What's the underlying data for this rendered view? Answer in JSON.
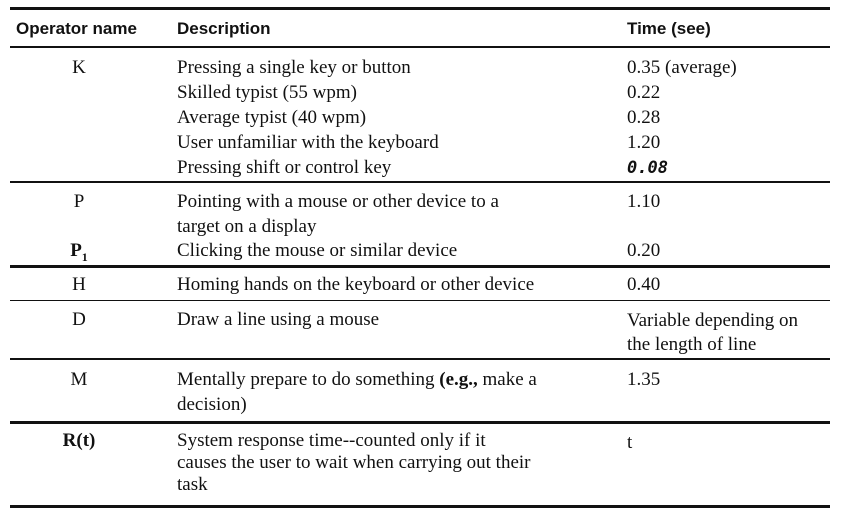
{
  "header": {
    "operator": "Operator name",
    "description": "Description",
    "time": "Time (see)"
  },
  "rows": [
    {
      "op": "K",
      "lines": [
        {
          "desc": "Pressing a single key or button",
          "time": "0.35 (average)"
        },
        {
          "desc": "Skilled typist (55 wpm)",
          "time": "0.22"
        },
        {
          "desc": "Average typist (40 wpm)",
          "time": "0.28"
        },
        {
          "desc": "User unfamiliar with the keyboard",
          "time": "1.20"
        },
        {
          "desc": "Pressing shift or control key",
          "time": "0.08"
        }
      ]
    },
    {
      "op": "P",
      "desc1": "Pointing with a mouse or other device to a",
      "desc2": "target on a display",
      "time": "1.10"
    },
    {
      "op": "P",
      "op_sub": "1",
      "desc": "Clicking the mouse or similar device",
      "time": "0.20"
    },
    {
      "op": "H",
      "desc": "Homing hands on the keyboard or other device",
      "time": "0.40"
    },
    {
      "op": "D",
      "desc": "Draw a line using a mouse",
      "time1": "Variable depending on",
      "time2": "the length of line"
    },
    {
      "op": "M",
      "desc1a": "Mentally prepare to do something ",
      "desc1b": "(e.g.,",
      "desc1c": " make a",
      "desc2": "decision)",
      "time": "1.35"
    },
    {
      "op": "R(t)",
      "desc1": "System response time--counted only if it",
      "desc2": "causes the user to wait when carrying out their",
      "desc3": "task",
      "time": "t"
    }
  ]
}
